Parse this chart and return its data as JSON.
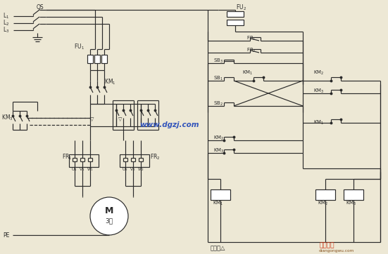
{
  "bg_color": "#ede8d5",
  "lc": "#2a2a2a",
  "blue": "#3355bb",
  "red": "#cc3311",
  "brown": "#885522",
  "watermark": "www.dgzj.com",
  "label_low": "低速（△",
  "label_dianr": "电工之屋",
  "label_site": "diangongwu.com"
}
